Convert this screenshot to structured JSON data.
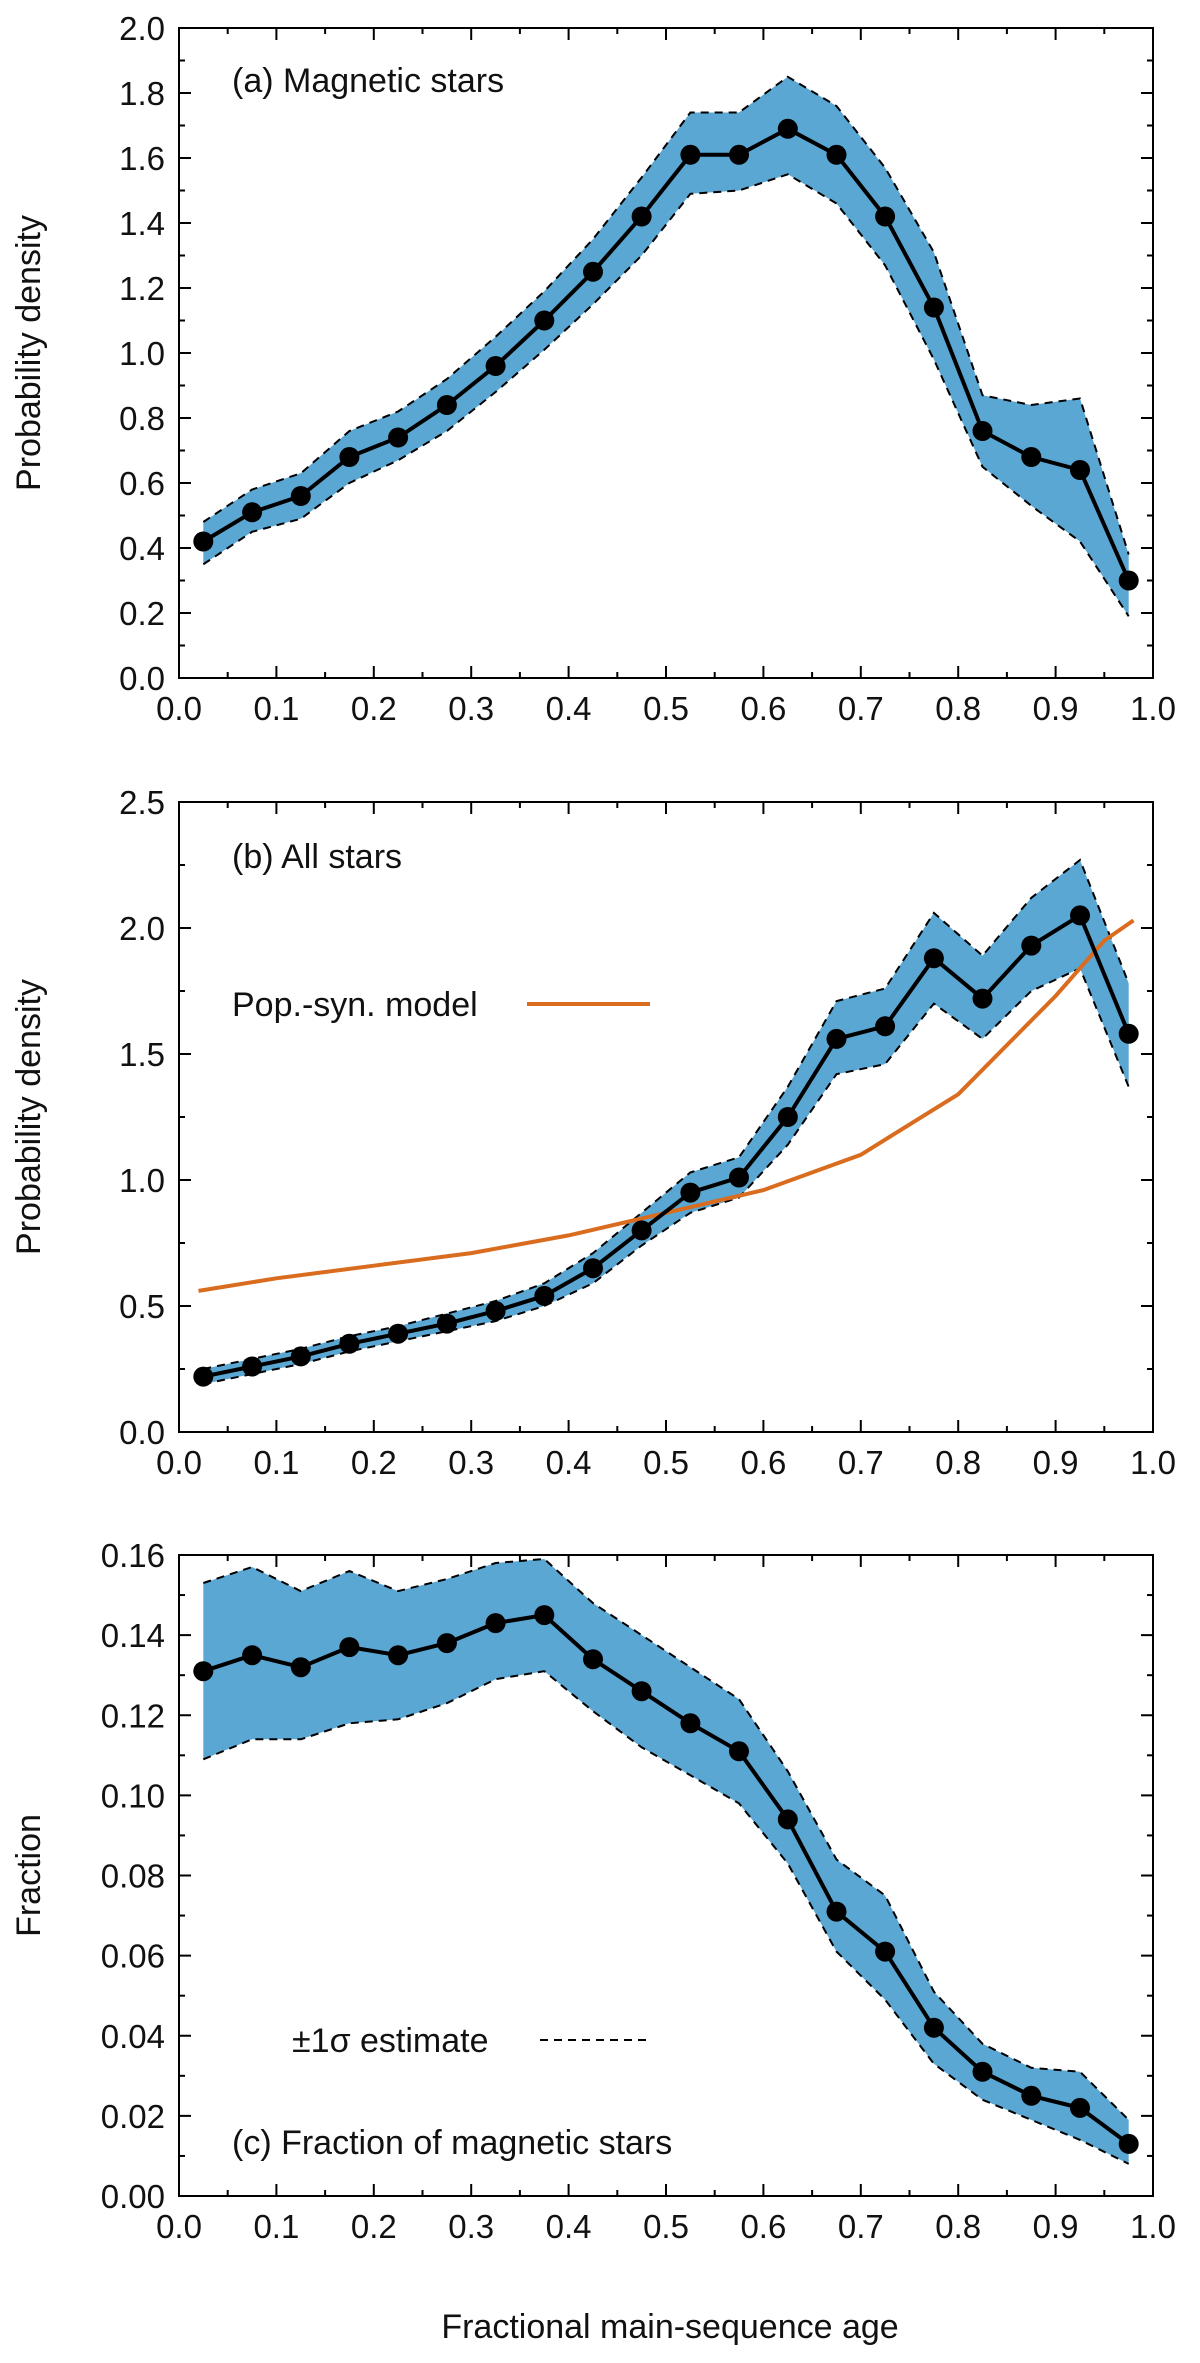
{
  "figure": {
    "xlabel": "Fractional main-sequence age",
    "band_color": "#5ba7d4",
    "line_color": "#000000",
    "model_color": "#d96c1f"
  },
  "chart_data": [
    {
      "type": "line",
      "panel": "a",
      "title": "(a) Magnetic stars",
      "xlabel": "",
      "ylabel": "Probability density",
      "xlim": [
        0.0,
        1.0
      ],
      "ylim": [
        0.0,
        2.0
      ],
      "xticks": [
        "0.0",
        "0.1",
        "0.2",
        "0.3",
        "0.4",
        "0.5",
        "0.6",
        "0.7",
        "0.8",
        "0.9",
        "1.0"
      ],
      "yticks": [
        "0.0",
        "0.2",
        "0.4",
        "0.6",
        "0.8",
        "1.0",
        "1.2",
        "1.4",
        "1.6",
        "1.8",
        "2.0"
      ],
      "x": [
        0.025,
        0.075,
        0.125,
        0.175,
        0.225,
        0.275,
        0.325,
        0.375,
        0.425,
        0.475,
        0.525,
        0.575,
        0.625,
        0.675,
        0.725,
        0.775,
        0.825,
        0.875,
        0.925,
        0.975
      ],
      "series": [
        {
          "name": "Magnetic stars",
          "values": [
            0.42,
            0.51,
            0.56,
            0.68,
            0.74,
            0.84,
            0.96,
            1.1,
            1.25,
            1.42,
            1.61,
            1.61,
            1.69,
            1.61,
            1.42,
            1.14,
            0.76,
            0.68,
            0.64,
            0.3
          ]
        },
        {
          "name": "+1 sigma",
          "values": [
            0.48,
            0.58,
            0.63,
            0.76,
            0.82,
            0.92,
            1.05,
            1.19,
            1.35,
            1.54,
            1.74,
            1.74,
            1.85,
            1.76,
            1.57,
            1.31,
            0.87,
            0.84,
            0.86,
            0.38
          ]
        },
        {
          "name": "-1 sigma",
          "values": [
            0.35,
            0.45,
            0.49,
            0.6,
            0.67,
            0.76,
            0.88,
            1.01,
            1.15,
            1.3,
            1.49,
            1.5,
            1.55,
            1.46,
            1.27,
            0.98,
            0.65,
            0.53,
            0.42,
            0.19
          ]
        }
      ]
    },
    {
      "type": "line",
      "panel": "b",
      "title": "(b) All stars",
      "xlabel": "",
      "ylabel": "Probability density",
      "xlim": [
        0.0,
        1.0
      ],
      "ylim": [
        0.0,
        2.5
      ],
      "xticks": [
        "0.0",
        "0.1",
        "0.2",
        "0.3",
        "0.4",
        "0.5",
        "0.6",
        "0.7",
        "0.8",
        "0.9",
        "1.0"
      ],
      "yticks": [
        "0.0",
        "0.5",
        "1.0",
        "1.5",
        "2.0",
        "2.5"
      ],
      "legend": {
        "label": "Pop.-syn. model",
        "placement": "upper-left"
      },
      "x": [
        0.025,
        0.075,
        0.125,
        0.175,
        0.225,
        0.275,
        0.325,
        0.375,
        0.425,
        0.475,
        0.525,
        0.575,
        0.625,
        0.675,
        0.725,
        0.775,
        0.825,
        0.875,
        0.925,
        0.975
      ],
      "series": [
        {
          "name": "All stars",
          "values": [
            0.22,
            0.26,
            0.3,
            0.35,
            0.39,
            0.43,
            0.48,
            0.54,
            0.65,
            0.8,
            0.95,
            1.01,
            1.25,
            1.56,
            1.61,
            1.88,
            1.72,
            1.93,
            2.05,
            1.58
          ]
        },
        {
          "name": "+1 sigma",
          "values": [
            0.25,
            0.29,
            0.33,
            0.38,
            0.42,
            0.47,
            0.52,
            0.59,
            0.71,
            0.87,
            1.03,
            1.09,
            1.37,
            1.71,
            1.76,
            2.06,
            1.89,
            2.12,
            2.27,
            1.78
          ]
        },
        {
          "name": "-1 sigma",
          "values": [
            0.19,
            0.23,
            0.27,
            0.32,
            0.36,
            0.4,
            0.44,
            0.5,
            0.59,
            0.74,
            0.87,
            0.93,
            1.14,
            1.42,
            1.46,
            1.7,
            1.56,
            1.75,
            1.84,
            1.37
          ]
        }
      ],
      "model": {
        "name": "Pop.-syn. model",
        "x": [
          0.02,
          0.1,
          0.2,
          0.3,
          0.4,
          0.5,
          0.6,
          0.7,
          0.8,
          0.9,
          0.95,
          0.98
        ],
        "values": [
          0.56,
          0.61,
          0.66,
          0.71,
          0.78,
          0.87,
          0.96,
          1.1,
          1.34,
          1.73,
          1.95,
          2.03
        ]
      }
    },
    {
      "type": "line",
      "panel": "c",
      "title": "(c) Fraction of magnetic stars",
      "xlabel": "Fractional main-sequence age",
      "ylabel": "Fraction",
      "xlim": [
        0.0,
        1.0
      ],
      "ylim": [
        0.0,
        0.16
      ],
      "xticks": [
        "0.0",
        "0.1",
        "0.2",
        "0.3",
        "0.4",
        "0.5",
        "0.6",
        "0.7",
        "0.8",
        "0.9",
        "1.0"
      ],
      "yticks": [
        "0.00",
        "0.02",
        "0.04",
        "0.06",
        "0.08",
        "0.10",
        "0.12",
        "0.14",
        "0.16"
      ],
      "legend": {
        "label": "±1σ estimate",
        "placement": "lower-left"
      },
      "x": [
        0.025,
        0.075,
        0.125,
        0.175,
        0.225,
        0.275,
        0.325,
        0.375,
        0.425,
        0.475,
        0.525,
        0.575,
        0.625,
        0.675,
        0.725,
        0.775,
        0.825,
        0.875,
        0.925,
        0.975
      ],
      "series": [
        {
          "name": "Fraction of magnetic stars",
          "values": [
            0.131,
            0.135,
            0.132,
            0.137,
            0.135,
            0.138,
            0.143,
            0.145,
            0.134,
            0.126,
            0.118,
            0.111,
            0.094,
            0.071,
            0.061,
            0.042,
            0.031,
            0.025,
            0.022,
            0.013
          ]
        },
        {
          "name": "+1 sigma",
          "values": [
            0.153,
            0.157,
            0.151,
            0.156,
            0.151,
            0.154,
            0.158,
            0.159,
            0.148,
            0.14,
            0.132,
            0.124,
            0.106,
            0.084,
            0.075,
            0.051,
            0.038,
            0.032,
            0.031,
            0.019
          ]
        },
        {
          "name": "-1 sigma",
          "values": [
            0.109,
            0.114,
            0.114,
            0.118,
            0.119,
            0.123,
            0.129,
            0.131,
            0.121,
            0.112,
            0.105,
            0.098,
            0.083,
            0.061,
            0.049,
            0.033,
            0.024,
            0.019,
            0.014,
            0.008
          ]
        }
      ]
    }
  ]
}
